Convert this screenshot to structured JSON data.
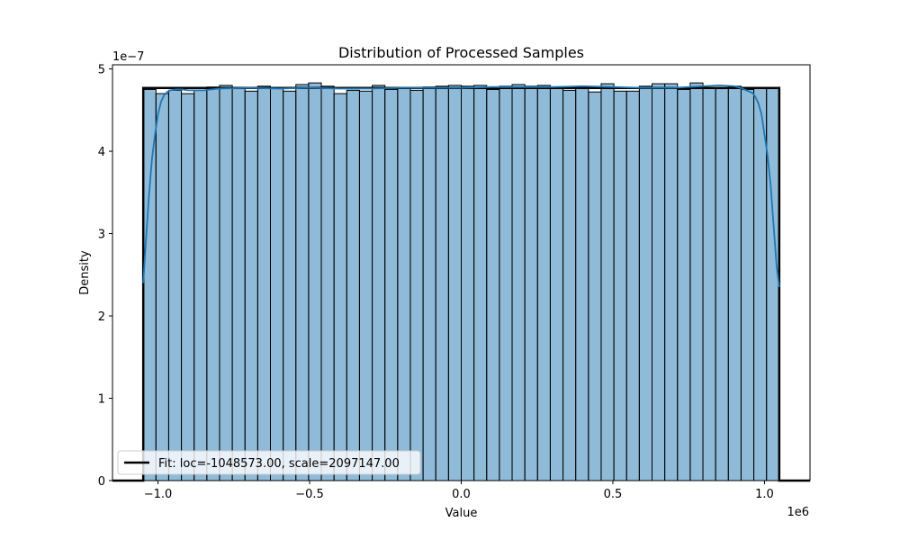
{
  "chart_data": {
    "type": "bar",
    "title": "Distribution of Processed Samples",
    "xlabel": "Value",
    "ylabel": "Density",
    "x_offset_label": "1e6",
    "y_offset_label": "1e−7",
    "xlim": [
      -1.15,
      1.15
    ],
    "ylim": [
      0,
      5.05
    ],
    "x_ticks": [
      -1.0,
      -0.5,
      0.0,
      0.5,
      1.0
    ],
    "x_tick_labels": [
      "−1.0",
      "−0.5",
      "0.0",
      "0.5",
      "1.0"
    ],
    "y_ticks": [
      0,
      1,
      2,
      3,
      4,
      5
    ],
    "y_tick_labels": [
      "0",
      "1",
      "2",
      "3",
      "4",
      "5"
    ],
    "grid": false,
    "histogram": {
      "bin_start": -1.0486,
      "bin_end": 1.0486,
      "bin_count": 50,
      "densities": [
        4.75,
        4.7,
        4.74,
        4.7,
        4.74,
        4.78,
        4.8,
        4.76,
        4.73,
        4.79,
        4.76,
        4.73,
        4.81,
        4.83,
        4.79,
        4.7,
        4.74,
        4.73,
        4.8,
        4.75,
        4.77,
        4.74,
        4.78,
        4.79,
        4.8,
        4.79,
        4.8,
        4.75,
        4.79,
        4.81,
        4.79,
        4.8,
        4.77,
        4.74,
        4.78,
        4.72,
        4.82,
        4.73,
        4.73,
        4.79,
        4.82,
        4.82,
        4.75,
        4.83,
        4.77,
        4.76,
        4.79,
        4.75,
        4.77,
        4.76
      ],
      "color": "#1f77b4"
    },
    "kde": {
      "x": [
        -1.0486,
        -1.04,
        -1.03,
        -1.02,
        -1.01,
        -1.0,
        -0.99,
        -0.98,
        -0.97,
        -0.96,
        -0.94,
        -0.92,
        -0.9,
        -0.85,
        -0.8,
        -0.7,
        -0.6,
        -0.5,
        -0.4,
        -0.3,
        -0.2,
        -0.1,
        0.0,
        0.1,
        0.2,
        0.3,
        0.4,
        0.5,
        0.6,
        0.7,
        0.8,
        0.85,
        0.9,
        0.92,
        0.94,
        0.96,
        0.97,
        0.98,
        0.99,
        1.0,
        1.01,
        1.02,
        1.03,
        1.04,
        1.0486
      ],
      "y": [
        2.4,
        2.9,
        3.45,
        3.9,
        4.2,
        4.45,
        4.6,
        4.68,
        4.72,
        4.74,
        4.75,
        4.75,
        4.74,
        4.74,
        4.76,
        4.77,
        4.76,
        4.77,
        4.76,
        4.76,
        4.77,
        4.77,
        4.77,
        4.78,
        4.78,
        4.78,
        4.79,
        4.78,
        4.77,
        4.77,
        4.79,
        4.8,
        4.79,
        4.77,
        4.74,
        4.71,
        4.66,
        4.58,
        4.45,
        4.2,
        3.95,
        3.6,
        3.1,
        2.6,
        2.35
      ],
      "color": "#1f77b4"
    },
    "fit": {
      "label": "Fit: loc=-1048573.00, scale=2097147.00",
      "loc": -1.048573,
      "scale": 2.097147,
      "density": 4.768,
      "x_range": [
        -1.15,
        1.15
      ],
      "color": "#000000"
    },
    "legend_position": "lower left"
  }
}
